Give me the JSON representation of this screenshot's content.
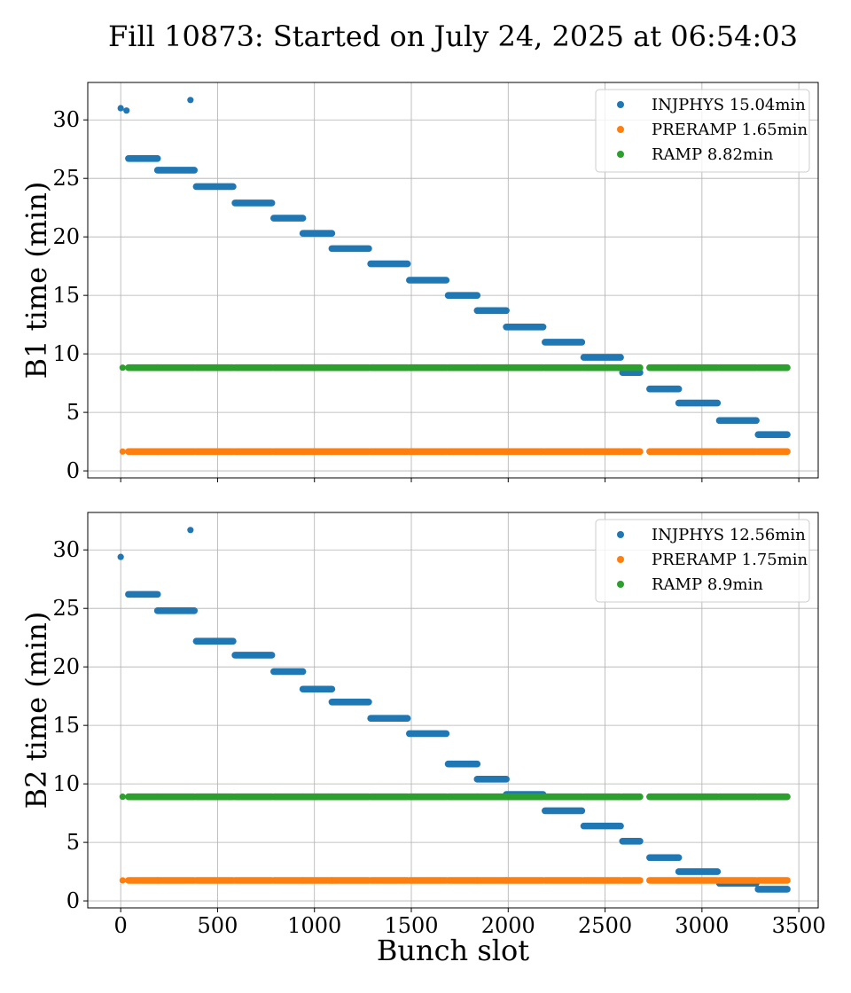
{
  "figure": {
    "title": "Fill 10873: Started on July 24, 2025 at 06:54:03",
    "xlabel": "Bunch slot"
  },
  "colors": {
    "INJPHYS": "#1f77b4",
    "PRERAMP": "#ff7f0e",
    "RAMP": "#2ca02c"
  },
  "chart_data": [
    {
      "type": "scatter",
      "ylabel": "B1 time (min)",
      "xlim": [
        -170,
        3600
      ],
      "ylim": [
        -0.6,
        33.2
      ],
      "xticks": [
        0,
        500,
        1000,
        1500,
        2000,
        2500,
        3000,
        3500
      ],
      "yticks": [
        0,
        5,
        10,
        15,
        20,
        25,
        30
      ],
      "grid": true,
      "legend_position": "top-right",
      "x_tick_labels_visible": false,
      "legend": [
        "INJPHYS 15.04min",
        "PRERAMP 1.65min",
        "RAMP 8.82min"
      ],
      "series": [
        {
          "name": "INJPHYS 15.04min",
          "color_key": "INJPHYS",
          "points": [
            [
              0,
              31.0
            ],
            [
              30,
              30.8
            ],
            [
              360,
              31.7
            ]
          ],
          "segments": [
            {
              "x": [
                40,
                190
              ],
              "y": 26.7
            },
            {
              "x": [
                190,
                380
              ],
              "y": 25.7
            },
            {
              "x": [
                390,
                580
              ],
              "y": 24.3
            },
            {
              "x": [
                590,
                780
              ],
              "y": 22.9
            },
            {
              "x": [
                790,
                940
              ],
              "y": 21.6
            },
            {
              "x": [
                940,
                1090
              ],
              "y": 20.3
            },
            {
              "x": [
                1090,
                1280
              ],
              "y": 19.0
            },
            {
              "x": [
                1290,
                1480
              ],
              "y": 17.7
            },
            {
              "x": [
                1490,
                1680
              ],
              "y": 16.3
            },
            {
              "x": [
                1690,
                1840
              ],
              "y": 15.0
            },
            {
              "x": [
                1840,
                1990
              ],
              "y": 13.7
            },
            {
              "x": [
                1990,
                2180
              ],
              "y": 12.3
            },
            {
              "x": [
                2190,
                2380
              ],
              "y": 11.0
            },
            {
              "x": [
                2390,
                2580
              ],
              "y": 9.7
            },
            {
              "x": [
                2590,
                2680
              ],
              "y": 8.4
            },
            {
              "x": [
                2730,
                2880
              ],
              "y": 7.0
            },
            {
              "x": [
                2880,
                3080
              ],
              "y": 5.8
            },
            {
              "x": [
                3090,
                3280
              ],
              "y": 4.3
            },
            {
              "x": [
                3290,
                3440
              ],
              "y": 3.1
            }
          ]
        },
        {
          "name": "PRERAMP 1.65min",
          "color_key": "PRERAMP",
          "points": [
            [
              10,
              1.65
            ]
          ],
          "segments": [
            {
              "x": [
                40,
                190
              ],
              "y": 1.65
            },
            {
              "x": [
                190,
                380
              ],
              "y": 1.65
            },
            {
              "x": [
                390,
                580
              ],
              "y": 1.65
            },
            {
              "x": [
                590,
                780
              ],
              "y": 1.65
            },
            {
              "x": [
                790,
                940
              ],
              "y": 1.65
            },
            {
              "x": [
                940,
                1090
              ],
              "y": 1.65
            },
            {
              "x": [
                1090,
                1280
              ],
              "y": 1.65
            },
            {
              "x": [
                1290,
                1480
              ],
              "y": 1.65
            },
            {
              "x": [
                1490,
                1680
              ],
              "y": 1.65
            },
            {
              "x": [
                1690,
                1840
              ],
              "y": 1.65
            },
            {
              "x": [
                1840,
                1990
              ],
              "y": 1.65
            },
            {
              "x": [
                1990,
                2180
              ],
              "y": 1.65
            },
            {
              "x": [
                2190,
                2380
              ],
              "y": 1.65
            },
            {
              "x": [
                2390,
                2580
              ],
              "y": 1.65
            },
            {
              "x": [
                2590,
                2680
              ],
              "y": 1.65
            },
            {
              "x": [
                2730,
                2880
              ],
              "y": 1.65
            },
            {
              "x": [
                2880,
                3080
              ],
              "y": 1.65
            },
            {
              "x": [
                3090,
                3280
              ],
              "y": 1.65
            },
            {
              "x": [
                3290,
                3440
              ],
              "y": 1.65
            }
          ]
        },
        {
          "name": "RAMP 8.82min",
          "color_key": "RAMP",
          "points": [
            [
              10,
              8.82
            ]
          ],
          "segments": [
            {
              "x": [
                40,
                190
              ],
              "y": 8.82
            },
            {
              "x": [
                190,
                380
              ],
              "y": 8.82
            },
            {
              "x": [
                390,
                580
              ],
              "y": 8.82
            },
            {
              "x": [
                590,
                780
              ],
              "y": 8.82
            },
            {
              "x": [
                790,
                940
              ],
              "y": 8.82
            },
            {
              "x": [
                940,
                1090
              ],
              "y": 8.82
            },
            {
              "x": [
                1090,
                1280
              ],
              "y": 8.82
            },
            {
              "x": [
                1290,
                1480
              ],
              "y": 8.82
            },
            {
              "x": [
                1490,
                1680
              ],
              "y": 8.82
            },
            {
              "x": [
                1690,
                1840
              ],
              "y": 8.82
            },
            {
              "x": [
                1840,
                1990
              ],
              "y": 8.82
            },
            {
              "x": [
                1990,
                2180
              ],
              "y": 8.82
            },
            {
              "x": [
                2190,
                2380
              ],
              "y": 8.82
            },
            {
              "x": [
                2390,
                2580
              ],
              "y": 8.82
            },
            {
              "x": [
                2590,
                2680
              ],
              "y": 8.82
            },
            {
              "x": [
                2730,
                2880
              ],
              "y": 8.82
            },
            {
              "x": [
                2880,
                3080
              ],
              "y": 8.82
            },
            {
              "x": [
                3090,
                3280
              ],
              "y": 8.82
            },
            {
              "x": [
                3290,
                3440
              ],
              "y": 8.82
            }
          ]
        }
      ]
    },
    {
      "type": "scatter",
      "ylabel": "B2 time (min)",
      "xlim": [
        -170,
        3600
      ],
      "ylim": [
        -0.6,
        33.2
      ],
      "xticks": [
        0,
        500,
        1000,
        1500,
        2000,
        2500,
        3000,
        3500
      ],
      "yticks": [
        0,
        5,
        10,
        15,
        20,
        25,
        30
      ],
      "grid": true,
      "legend_position": "top-right",
      "x_tick_labels_visible": true,
      "legend": [
        "INJPHYS 12.56min",
        "PRERAMP 1.75min",
        "RAMP 8.9min"
      ],
      "series": [
        {
          "name": "INJPHYS 12.56min",
          "color_key": "INJPHYS",
          "points": [
            [
              0,
              29.4
            ],
            [
              360,
              31.7
            ]
          ],
          "segments": [
            {
              "x": [
                40,
                190
              ],
              "y": 26.2
            },
            {
              "x": [
                190,
                380
              ],
              "y": 24.8
            },
            {
              "x": [
                390,
                580
              ],
              "y": 22.2
            },
            {
              "x": [
                590,
                780
              ],
              "y": 21.0
            },
            {
              "x": [
                790,
                940
              ],
              "y": 19.6
            },
            {
              "x": [
                940,
                1090
              ],
              "y": 18.1
            },
            {
              "x": [
                1090,
                1280
              ],
              "y": 17.0
            },
            {
              "x": [
                1290,
                1480
              ],
              "y": 15.6
            },
            {
              "x": [
                1490,
                1680
              ],
              "y": 14.3
            },
            {
              "x": [
                1690,
                1840
              ],
              "y": 11.7
            },
            {
              "x": [
                1840,
                1990
              ],
              "y": 10.4
            },
            {
              "x": [
                1990,
                2180
              ],
              "y": 9.1
            },
            {
              "x": [
                2190,
                2380
              ],
              "y": 7.7
            },
            {
              "x": [
                2390,
                2580
              ],
              "y": 6.4
            },
            {
              "x": [
                2590,
                2680
              ],
              "y": 5.1
            },
            {
              "x": [
                2730,
                2880
              ],
              "y": 3.7
            },
            {
              "x": [
                2880,
                3080
              ],
              "y": 2.5
            },
            {
              "x": [
                3090,
                3280
              ],
              "y": 1.5
            },
            {
              "x": [
                3290,
                3440
              ],
              "y": 1.0
            }
          ]
        },
        {
          "name": "PRERAMP 1.75min",
          "color_key": "PRERAMP",
          "points": [
            [
              10,
              1.75
            ]
          ],
          "segments": [
            {
              "x": [
                40,
                190
              ],
              "y": 1.75
            },
            {
              "x": [
                190,
                380
              ],
              "y": 1.75
            },
            {
              "x": [
                390,
                580
              ],
              "y": 1.75
            },
            {
              "x": [
                590,
                780
              ],
              "y": 1.75
            },
            {
              "x": [
                790,
                940
              ],
              "y": 1.75
            },
            {
              "x": [
                940,
                1090
              ],
              "y": 1.75
            },
            {
              "x": [
                1090,
                1280
              ],
              "y": 1.75
            },
            {
              "x": [
                1290,
                1480
              ],
              "y": 1.75
            },
            {
              "x": [
                1490,
                1680
              ],
              "y": 1.75
            },
            {
              "x": [
                1690,
                1840
              ],
              "y": 1.75
            },
            {
              "x": [
                1840,
                1990
              ],
              "y": 1.75
            },
            {
              "x": [
                1990,
                2180
              ],
              "y": 1.75
            },
            {
              "x": [
                2190,
                2380
              ],
              "y": 1.75
            },
            {
              "x": [
                2390,
                2580
              ],
              "y": 1.75
            },
            {
              "x": [
                2590,
                2680
              ],
              "y": 1.75
            },
            {
              "x": [
                2730,
                2880
              ],
              "y": 1.75
            },
            {
              "x": [
                2880,
                3080
              ],
              "y": 1.75
            },
            {
              "x": [
                3090,
                3280
              ],
              "y": 1.75
            },
            {
              "x": [
                3290,
                3440
              ],
              "y": 1.75
            }
          ]
        },
        {
          "name": "RAMP 8.9min",
          "color_key": "RAMP",
          "points": [
            [
              10,
              8.9
            ]
          ],
          "segments": [
            {
              "x": [
                40,
                190
              ],
              "y": 8.9
            },
            {
              "x": [
                190,
                380
              ],
              "y": 8.9
            },
            {
              "x": [
                390,
                580
              ],
              "y": 8.9
            },
            {
              "x": [
                590,
                780
              ],
              "y": 8.9
            },
            {
              "x": [
                790,
                940
              ],
              "y": 8.9
            },
            {
              "x": [
                940,
                1090
              ],
              "y": 8.9
            },
            {
              "x": [
                1090,
                1280
              ],
              "y": 8.9
            },
            {
              "x": [
                1290,
                1480
              ],
              "y": 8.9
            },
            {
              "x": [
                1490,
                1680
              ],
              "y": 8.9
            },
            {
              "x": [
                1690,
                1840
              ],
              "y": 8.9
            },
            {
              "x": [
                1840,
                1990
              ],
              "y": 8.9
            },
            {
              "x": [
                1990,
                2180
              ],
              "y": 8.9
            },
            {
              "x": [
                2190,
                2380
              ],
              "y": 8.9
            },
            {
              "x": [
                2390,
                2580
              ],
              "y": 8.9
            },
            {
              "x": [
                2590,
                2680
              ],
              "y": 8.9
            },
            {
              "x": [
                2730,
                2880
              ],
              "y": 8.9
            },
            {
              "x": [
                2880,
                3080
              ],
              "y": 8.9
            },
            {
              "x": [
                3090,
                3280
              ],
              "y": 8.9
            },
            {
              "x": [
                3290,
                3440
              ],
              "y": 8.9
            }
          ]
        }
      ]
    }
  ]
}
